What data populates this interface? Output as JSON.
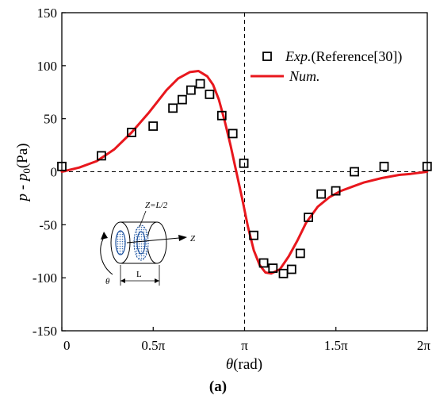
{
  "chart_data": {
    "type": "line",
    "xlabel": "θ(rad)",
    "ylabel": "p - p0(Pa)",
    "ylabel_parts": {
      "p": "p",
      "dash": " - ",
      "p0": "p",
      "sub": "0",
      "unit": "(Pa)"
    },
    "xlabel_parts": {
      "theta": "θ",
      "unit": "(rad)"
    },
    "caption": "(a)",
    "xlim": [
      0,
      6.2832
    ],
    "ylim": [
      -150,
      150
    ],
    "x_ticks": [
      {
        "value": 0,
        "label": "0"
      },
      {
        "value": 1.5708,
        "label": "0.5π"
      },
      {
        "value": 3.1416,
        "label": "π"
      },
      {
        "value": 4.7124,
        "label": "1.5π"
      },
      {
        "value": 6.2832,
        "label": "2π"
      }
    ],
    "y_ticks": [
      150,
      100,
      50,
      0,
      -50,
      -100,
      -150
    ],
    "legend_position": "top-right",
    "series": [
      {
        "name": "Exp.(Reference[30])",
        "name_parts": {
          "italic": "Exp.",
          "normal": "(Reference[30])"
        },
        "kind": "marker",
        "color": "#000000",
        "x": [
          0.0,
          0.68,
          1.2,
          1.57,
          1.91,
          2.07,
          2.22,
          2.38,
          2.54,
          2.75,
          2.94,
          3.13,
          3.3,
          3.47,
          3.63,
          3.81,
          3.95,
          4.1,
          4.24,
          4.46,
          4.71,
          5.03,
          5.54,
          6.28
        ],
        "y": [
          5,
          15,
          37,
          43,
          60,
          68,
          77,
          83,
          73,
          53,
          36,
          8,
          -60,
          -86,
          -91,
          -96,
          -92,
          -77,
          -43,
          -21,
          -18,
          0,
          5,
          5
        ]
      },
      {
        "name": "Num.",
        "name_parts": {
          "italic": "Num.",
          "normal": ""
        },
        "kind": "line",
        "color": "#e8171d",
        "x": [
          0.0,
          0.3,
          0.6,
          0.9,
          1.2,
          1.5,
          1.8,
          2.0,
          2.2,
          2.35,
          2.5,
          2.6,
          2.7,
          2.8,
          2.9,
          3.0,
          3.1,
          3.2,
          3.3,
          3.4,
          3.5,
          3.6,
          3.75,
          3.9,
          4.05,
          4.2,
          4.4,
          4.6,
          4.8,
          5.0,
          5.2,
          5.5,
          5.8,
          6.0,
          6.28
        ],
        "y": [
          0,
          4,
          10,
          21,
          37,
          56,
          77,
          88,
          94,
          95,
          90,
          82,
          68,
          48,
          25,
          0,
          -25,
          -52,
          -74,
          -88,
          -95,
          -96,
          -92,
          -80,
          -65,
          -48,
          -33,
          -24,
          -18,
          -14,
          -10,
          -6,
          -3,
          -2,
          0
        ]
      }
    ],
    "reference_lines": {
      "vertical_x": 3.1416,
      "horizontal_y": 0
    },
    "inset": {
      "label_z_half": "Z=L/2",
      "label_z": "Z",
      "label_l": "L",
      "label_theta": "θ"
    }
  }
}
